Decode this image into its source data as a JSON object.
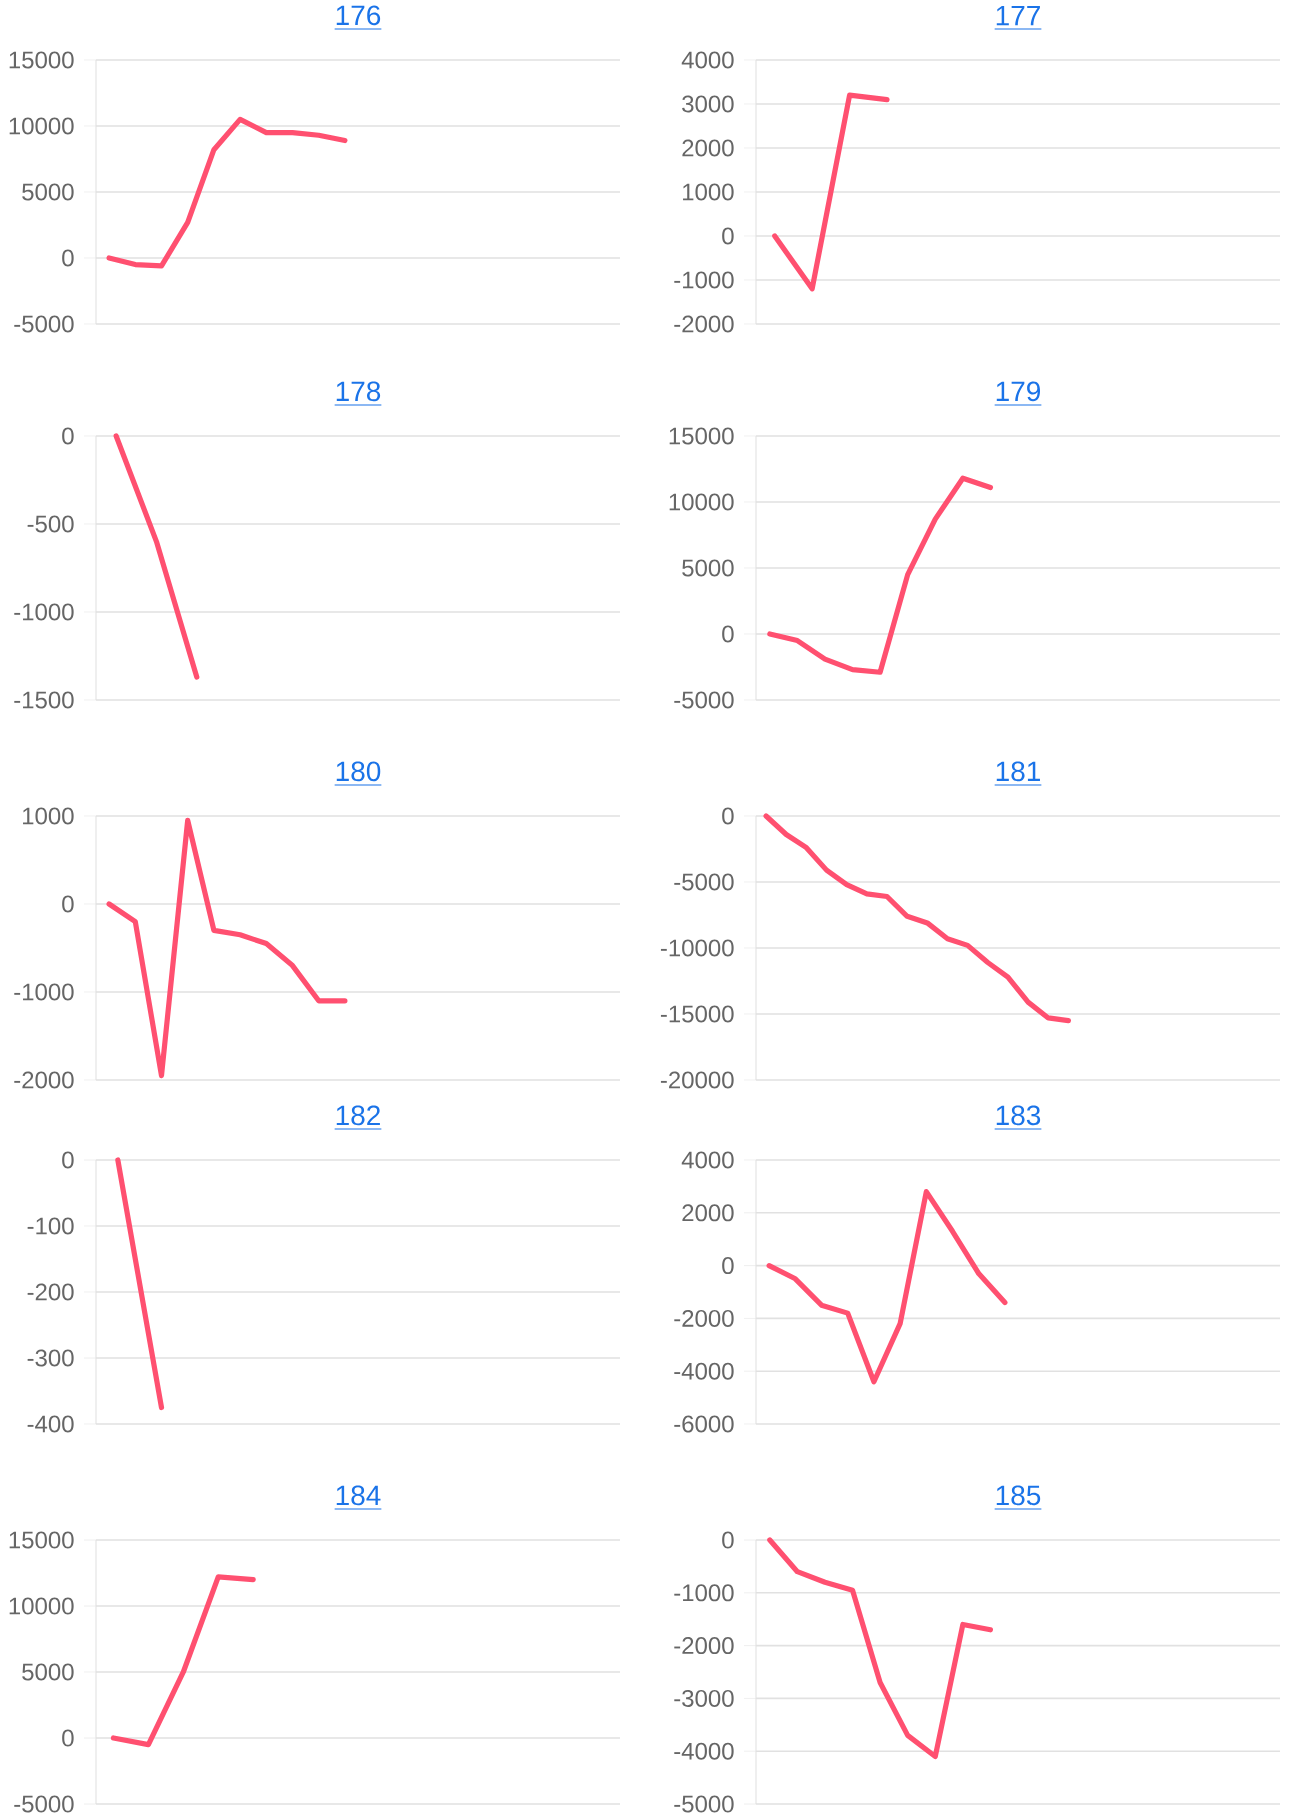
{
  "chart_data": [
    {
      "type": "line",
      "title": "176",
      "categories": [
        null,
        null,
        null,
        null,
        null,
        null,
        null,
        null,
        null,
        null,
        null,
        null,
        null,
        null,
        null,
        null,
        null,
        null,
        null,
        null
      ],
      "values": [
        0,
        -500,
        -600,
        2700,
        8200,
        10500,
        9500,
        9500,
        9300,
        8900,
        null,
        null,
        null,
        null,
        null,
        null,
        null,
        null,
        null,
        null
      ],
      "color": "#ff5070",
      "ylim": [
        -5000,
        15000
      ],
      "yticks": [
        -5000,
        0,
        5000,
        10000,
        15000
      ],
      "grid": "y",
      "tick_labels": "y"
    },
    {
      "type": "line",
      "title": "177",
      "categories": [
        null,
        null,
        null,
        null,
        null,
        null,
        null,
        null,
        null,
        null,
        null,
        null,
        null,
        null
      ],
      "values": [
        0,
        -1200,
        3200,
        3100,
        null,
        null,
        null,
        null,
        null,
        null,
        null,
        null,
        null,
        null
      ],
      "color": "#ff5070",
      "ylim": [
        -2000,
        4000
      ],
      "yticks": [
        -2000,
        -1000,
        0,
        1000,
        2000,
        3000,
        4000
      ],
      "grid": "y",
      "tick_labels": "y"
    },
    {
      "type": "line",
      "title": "178",
      "categories": [
        null,
        null,
        null,
        null,
        null,
        null,
        null,
        null,
        null,
        null,
        null,
        null,
        null
      ],
      "values": [
        0,
        -600,
        -1370,
        null,
        null,
        null,
        null,
        null,
        null,
        null,
        null,
        null,
        null
      ],
      "color": "#ff5070",
      "ylim": [
        -1500,
        0
      ],
      "yticks": [
        -1500,
        -1000,
        -500,
        0
      ],
      "grid": "y",
      "tick_labels": "y"
    },
    {
      "type": "line",
      "title": "179",
      "categories": [
        null,
        null,
        null,
        null,
        null,
        null,
        null,
        null,
        null,
        null,
        null,
        null,
        null,
        null,
        null,
        null,
        null,
        null,
        null
      ],
      "values": [
        0,
        -500,
        -1900,
        -2700,
        -2900,
        4500,
        8700,
        11800,
        11100,
        null,
        null,
        null,
        null,
        null,
        null,
        null,
        null,
        null,
        null
      ],
      "color": "#ff5070",
      "ylim": [
        -5000,
        15000
      ],
      "yticks": [
        -5000,
        0,
        5000,
        10000,
        15000
      ],
      "grid": "y",
      "tick_labels": "y"
    },
    {
      "type": "line",
      "title": "180",
      "categories": [
        null,
        null,
        null,
        null,
        null,
        null,
        null,
        null,
        null,
        null,
        null,
        null,
        null,
        null,
        null,
        null,
        null,
        null,
        null,
        null
      ],
      "values": [
        0,
        -200,
        -1950,
        950,
        -300,
        -350,
        -450,
        -700,
        -1100,
        -1100,
        null,
        null,
        null,
        null,
        null,
        null,
        null,
        null,
        null,
        null
      ],
      "color": "#ff5070",
      "ylim": [
        -2000,
        1000
      ],
      "yticks": [
        -2000,
        -1000,
        0,
        1000
      ],
      "grid": "y",
      "tick_labels": "y"
    },
    {
      "type": "line",
      "title": "181",
      "categories": [
        null,
        null,
        null,
        null,
        null,
        null,
        null,
        null,
        null,
        null,
        null,
        null,
        null,
        null,
        null,
        null,
        null,
        null,
        null,
        null,
        null,
        null,
        null,
        null,
        null,
        null
      ],
      "values": [
        0,
        -1400,
        -2400,
        -4100,
        -5200,
        -5900,
        -6100,
        -7600,
        -8100,
        -9300,
        -9800,
        -11100,
        -12200,
        -14100,
        -15300,
        -15500,
        null,
        null,
        null,
        null,
        null,
        null,
        null,
        null,
        null,
        null
      ],
      "color": "#ff5070",
      "ylim": [
        -20000,
        0
      ],
      "yticks": [
        -20000,
        -15000,
        -10000,
        -5000,
        0
      ],
      "grid": "y",
      "tick_labels": "y"
    },
    {
      "type": "line",
      "title": "182",
      "categories": [
        null,
        null,
        null,
        null,
        null,
        null,
        null,
        null,
        null,
        null,
        null,
        null
      ],
      "values": [
        0,
        -375,
        null,
        null,
        null,
        null,
        null,
        null,
        null,
        null,
        null,
        null
      ],
      "color": "#ff5070",
      "ylim": [
        -400,
        0
      ],
      "yticks": [
        -400,
        -300,
        -200,
        -100,
        0
      ],
      "grid": "y",
      "tick_labels": "y"
    },
    {
      "type": "line",
      "title": "183",
      "categories": [
        null,
        null,
        null,
        null,
        null,
        null,
        null,
        null,
        null,
        null,
        null,
        null,
        null,
        null,
        null,
        null,
        null,
        null,
        null,
        null
      ],
      "values": [
        0,
        -500,
        -1500,
        -1800,
        -4400,
        -2200,
        2800,
        1300,
        -300,
        -1400,
        null,
        null,
        null,
        null,
        null,
        null,
        null,
        null,
        null,
        null
      ],
      "color": "#ff5070",
      "ylim": [
        -6000,
        4000
      ],
      "yticks": [
        -6000,
        -4000,
        -2000,
        0,
        2000,
        4000
      ],
      "grid": "y",
      "tick_labels": "y"
    },
    {
      "type": "line",
      "title": "184",
      "categories": [
        null,
        null,
        null,
        null,
        null,
        null,
        null,
        null,
        null,
        null,
        null,
        null,
        null,
        null,
        null
      ],
      "values": [
        0,
        -500,
        5000,
        12200,
        12000,
        null,
        null,
        null,
        null,
        null,
        null,
        null,
        null,
        null,
        null
      ],
      "color": "#ff5070",
      "ylim": [
        -5000,
        15000
      ],
      "yticks": [
        -5000,
        0,
        5000,
        10000,
        15000
      ],
      "grid": "y",
      "tick_labels": "y"
    },
    {
      "type": "line",
      "title": "185",
      "categories": [
        null,
        null,
        null,
        null,
        null,
        null,
        null,
        null,
        null,
        null,
        null,
        null,
        null,
        null,
        null,
        null,
        null,
        null,
        null
      ],
      "values": [
        0,
        -600,
        -800,
        -950,
        -2700,
        -3700,
        -4100,
        -1600,
        -1700,
        null,
        null,
        null,
        null,
        null,
        null,
        null,
        null,
        null,
        null
      ],
      "color": "#ff5070",
      "ylim": [
        -5000,
        0
      ],
      "yticks": [
        -5000,
        -4000,
        -3000,
        -2000,
        -1000,
        0
      ],
      "grid": "y",
      "tick_labels": "y"
    }
  ]
}
